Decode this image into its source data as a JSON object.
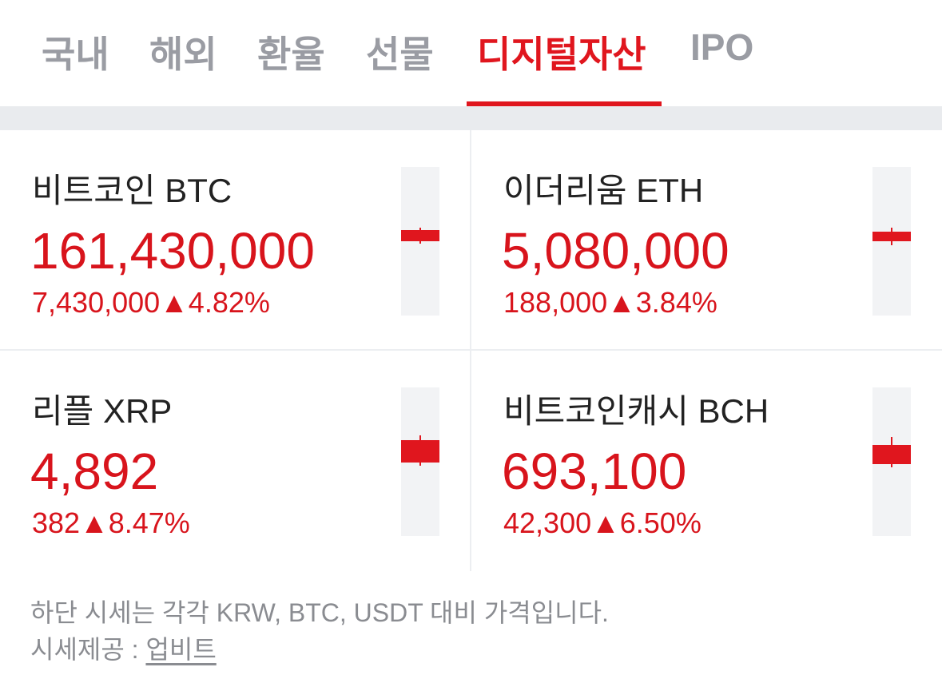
{
  "tabs": [
    {
      "label": "국내",
      "active": false
    },
    {
      "label": "해외",
      "active": false
    },
    {
      "label": "환율",
      "active": false
    },
    {
      "label": "선물",
      "active": false
    },
    {
      "label": "디지털자산",
      "active": true
    },
    {
      "label": "IPO",
      "active": false
    }
  ],
  "cards": [
    {
      "name": "비트코인 BTC",
      "price": "161,430,000",
      "change": "7,430,000",
      "arrow": "▲",
      "rate": "4.82%"
    },
    {
      "name": "이더리움 ETH",
      "price": "5,080,000",
      "change": "188,000",
      "arrow": "▲",
      "rate": "3.84%"
    },
    {
      "name": "리플 XRP",
      "price": "4,892",
      "change": "382",
      "arrow": "▲",
      "rate": "8.47%"
    },
    {
      "name": "비트코인캐시 BCH",
      "price": "693,100",
      "change": "42,300",
      "arrow": "▲",
      "rate": "6.50%"
    }
  ],
  "footer": {
    "note": "하단 시세는 각각 KRW, BTC, USDT 대비 가격입니다.",
    "provider_label": "시세제공 :",
    "provider": "업비트"
  }
}
